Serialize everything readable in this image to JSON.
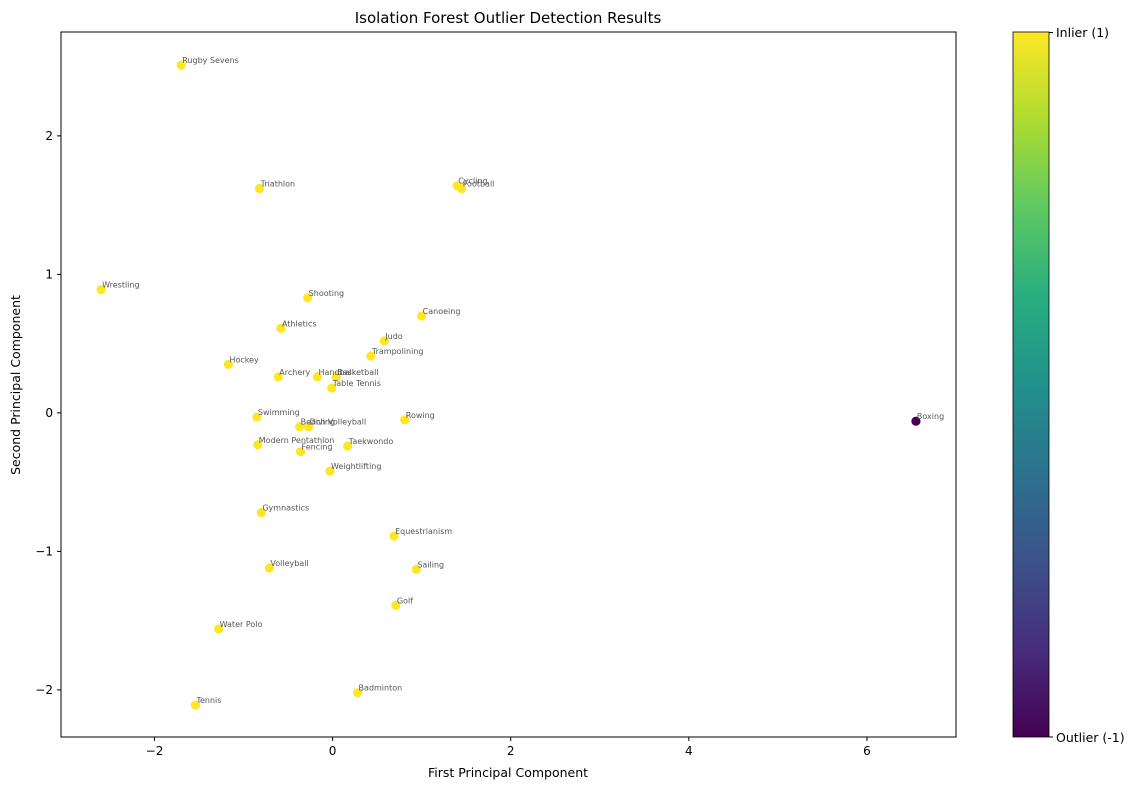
{
  "chart_data": {
    "type": "scatter",
    "title": "Isolation Forest Outlier Detection Results",
    "xlabel": "First Principal Component",
    "ylabel": "Second Principal Component",
    "xlim": [
      -3.05,
      7.0
    ],
    "ylim": [
      -2.34,
      2.75
    ],
    "xticks": [
      -2,
      0,
      2,
      4,
      6
    ],
    "yticks": [
      -2,
      -1,
      0,
      1,
      2
    ],
    "grid": false,
    "colorbar": {
      "colormap": "viridis",
      "range": [
        -1,
        1
      ],
      "tick_labels": [
        "Inlier (1)",
        "Outlier (-1)"
      ]
    },
    "colors": {
      "inlier": "#fde725",
      "outlier": "#440154",
      "label": "#555555"
    },
    "points": [
      {
        "label": "Rugby Sevens",
        "x": -1.7,
        "y": 2.51,
        "class": 1
      },
      {
        "label": "Triathlon",
        "x": -0.82,
        "y": 1.62,
        "class": 1
      },
      {
        "label": "Cycling",
        "x": 1.4,
        "y": 1.64,
        "class": 1
      },
      {
        "label": "Football",
        "x": 1.45,
        "y": 1.62,
        "class": 1
      },
      {
        "label": "Wrestling",
        "x": -2.6,
        "y": 0.89,
        "class": 1
      },
      {
        "label": "Shooting",
        "x": -0.28,
        "y": 0.83,
        "class": 1
      },
      {
        "label": "Canoeing",
        "x": 1.0,
        "y": 0.7,
        "class": 1
      },
      {
        "label": "Athletics",
        "x": -0.58,
        "y": 0.61,
        "class": 1
      },
      {
        "label": "Judo",
        "x": 0.58,
        "y": 0.52,
        "class": 1
      },
      {
        "label": "Trampolining",
        "x": 0.43,
        "y": 0.41,
        "class": 1
      },
      {
        "label": "Hockey",
        "x": -1.17,
        "y": 0.35,
        "class": 1
      },
      {
        "label": "Archery",
        "x": -0.61,
        "y": 0.26,
        "class": 1
      },
      {
        "label": "Handball",
        "x": -0.17,
        "y": 0.26,
        "class": 1
      },
      {
        "label": "Basketball",
        "x": 0.04,
        "y": 0.26,
        "class": 1
      },
      {
        "label": "Table Tennis",
        "x": -0.01,
        "y": 0.18,
        "class": 1
      },
      {
        "label": "Swimming",
        "x": -0.85,
        "y": -0.03,
        "class": 1
      },
      {
        "label": "Rowing",
        "x": 0.81,
        "y": -0.05,
        "class": 1
      },
      {
        "label": "Boxing",
        "x": 6.55,
        "y": -0.06,
        "class": -1
      },
      {
        "label": "Beach Volleyball",
        "x": -0.37,
        "y": -0.1,
        "class": 1
      },
      {
        "label": "Diving",
        "x": -0.27,
        "y": -0.1,
        "class": 1
      },
      {
        "label": "Modern Pentathlon",
        "x": -0.84,
        "y": -0.23,
        "class": 1
      },
      {
        "label": "Taekwondo",
        "x": 0.17,
        "y": -0.24,
        "class": 1
      },
      {
        "label": "Fencing",
        "x": -0.36,
        "y": -0.28,
        "class": 1
      },
      {
        "label": "Weightlifting",
        "x": -0.03,
        "y": -0.42,
        "class": 1
      },
      {
        "label": "Gymnastics",
        "x": -0.8,
        "y": -0.72,
        "class": 1
      },
      {
        "label": "Equestrianism",
        "x": 0.69,
        "y": -0.89,
        "class": 1
      },
      {
        "label": "Volleyball",
        "x": -0.71,
        "y": -1.12,
        "class": 1
      },
      {
        "label": "Sailing",
        "x": 0.94,
        "y": -1.13,
        "class": 1
      },
      {
        "label": "Golf",
        "x": 0.71,
        "y": -1.39,
        "class": 1
      },
      {
        "label": "Water Polo",
        "x": -1.28,
        "y": -1.56,
        "class": 1
      },
      {
        "label": "Badminton",
        "x": 0.28,
        "y": -2.02,
        "class": 1
      },
      {
        "label": "Tennis",
        "x": -1.54,
        "y": -2.11,
        "class": 1
      }
    ]
  }
}
